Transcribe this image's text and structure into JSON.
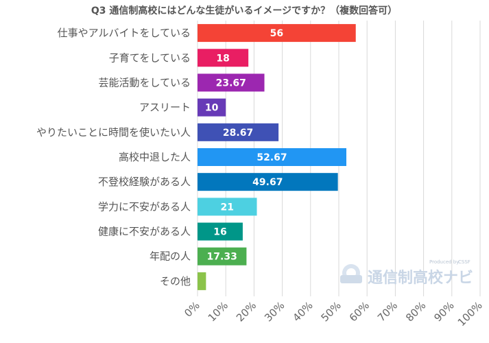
{
  "chart_data": {
    "type": "bar",
    "orientation": "horizontal",
    "title": "Q3 通信制高校にはどんな生徒がいるイメージですか？（複数回答可）",
    "categories": [
      "仕事やアルバイトをしている",
      "子育てをしている",
      "芸能活動をしている",
      "アスリート",
      "やりたいことに時間を使いたい人",
      "高校中退した人",
      "不登校経験がある人",
      "学力に不安がある人",
      "健康に不安がある人",
      "年配の人",
      "その他"
    ],
    "values": [
      56,
      18,
      23.67,
      10,
      28.67,
      52.67,
      49.67,
      21,
      16,
      17.33,
      3
    ],
    "value_labels": [
      "56",
      "18",
      "23.67",
      "10",
      "28.67",
      "52.67",
      "49.67",
      "21",
      "16",
      "17.33",
      ""
    ],
    "colors": [
      "#f44336",
      "#e91e63",
      "#9c27b0",
      "#673ab7",
      "#3f51b5",
      "#2196f3",
      "#0277bd",
      "#4dd0e1",
      "#009688",
      "#4caf50",
      "#8bc34a"
    ],
    "xlim": [
      0,
      100
    ],
    "xticks": [
      "0%",
      "10%",
      "20%",
      "30%",
      "40%",
      "50%",
      "60%",
      "70%",
      "80%",
      "90%",
      "100%"
    ],
    "grid": true,
    "xlabel": "",
    "ylabel": ""
  },
  "watermark": {
    "brand": "通信制高校ナビ",
    "produced_by": "Produced by",
    "producer": "CSSF",
    "icon": "navi-logo-icon"
  }
}
